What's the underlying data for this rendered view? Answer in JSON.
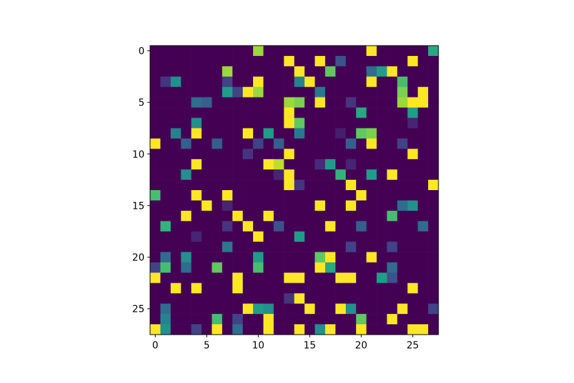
{
  "chart_data": {
    "type": "heatmap",
    "colormap": "viridis",
    "xlim": [
      -0.5,
      27.5
    ],
    "ylim": [
      27.5,
      -0.5
    ],
    "xticks": [
      0,
      5,
      10,
      15,
      20,
      25
    ],
    "yticks": [
      0,
      5,
      10,
      15,
      20,
      25
    ],
    "z": [
      [
        0,
        0,
        0,
        0,
        0,
        0,
        0,
        0,
        0,
        0,
        0.85,
        0,
        0,
        0,
        0,
        0,
        0,
        0,
        0,
        0,
        0,
        1,
        0,
        0,
        0,
        0,
        0,
        0.6
      ],
      [
        0,
        0,
        0,
        0,
        0,
        0,
        0,
        0,
        0,
        0,
        0,
        0,
        0,
        1,
        0,
        0,
        1,
        0,
        0.25,
        0,
        0,
        0,
        0,
        0,
        0,
        1,
        0,
        0
      ],
      [
        0,
        0,
        0,
        0,
        0,
        0,
        0,
        0.85,
        0,
        0,
        0,
        0,
        0,
        0,
        1,
        0,
        0,
        0.75,
        0,
        0,
        0,
        0.35,
        0.55,
        1,
        0,
        0,
        0,
        0
      ],
      [
        0,
        0.15,
        0.5,
        0,
        0,
        0,
        0,
        0.2,
        0,
        0,
        1,
        0,
        0,
        0,
        0.45,
        1,
        0,
        0,
        0,
        0,
        0,
        1,
        0,
        0,
        0.7,
        0,
        0,
        0
      ],
      [
        0,
        0,
        0,
        0,
        0,
        0,
        0,
        0.55,
        0.2,
        1,
        0.85,
        0,
        0,
        0,
        0,
        0,
        0.4,
        0,
        0,
        0,
        0,
        0,
        0,
        0,
        0.8,
        0,
        1,
        0
      ],
      [
        0,
        0,
        0,
        0,
        0.35,
        0.3,
        0,
        0,
        0,
        0,
        0,
        0,
        0,
        0.85,
        0.8,
        0,
        1,
        0,
        0,
        0.15,
        0,
        0,
        0,
        0,
        0.85,
        1,
        1,
        0
      ],
      [
        0,
        0,
        0,
        0,
        0,
        0,
        0,
        0,
        0,
        0,
        0,
        0,
        0,
        1,
        0,
        0,
        0,
        0,
        0,
        0,
        0.6,
        0,
        0,
        0,
        0,
        0.55,
        0,
        0
      ],
      [
        0,
        0,
        0,
        0,
        0.5,
        0,
        0,
        0,
        0,
        0,
        0,
        0,
        0,
        1,
        0.75,
        0,
        0,
        0,
        0,
        0,
        0,
        0,
        0,
        0,
        0,
        0.1,
        0,
        0
      ],
      [
        0,
        0,
        0.45,
        0,
        1,
        0,
        0,
        0,
        0,
        1,
        0,
        0.55,
        0,
        0,
        0.4,
        0,
        0,
        0,
        0.08,
        0,
        0.75,
        0.8,
        0,
        0,
        0,
        0,
        0,
        0
      ],
      [
        1,
        0,
        0,
        0.3,
        0,
        0,
        0.3,
        0,
        0,
        0,
        0.2,
        0,
        0.3,
        0,
        0,
        0,
        0,
        0,
        0,
        0.3,
        0,
        1,
        0,
        0,
        0.2,
        0,
        0,
        0
      ],
      [
        0,
        0,
        0,
        0,
        0,
        0,
        0,
        0,
        0,
        0.15,
        0,
        0,
        0,
        1,
        0,
        0,
        0,
        0,
        0,
        0,
        0,
        0,
        0,
        0,
        0,
        1,
        0,
        0
      ],
      [
        0,
        0,
        0,
        0,
        1,
        0,
        0,
        0,
        0,
        0,
        0,
        1,
        0.9,
        0,
        0,
        0,
        0.12,
        0.55,
        0,
        0.1,
        0,
        0,
        0,
        0,
        0,
        0,
        0,
        0
      ],
      [
        0,
        0,
        0,
        0.5,
        0,
        0,
        0,
        0,
        0,
        0,
        0,
        0,
        0.1,
        1,
        0,
        0,
        0,
        0,
        0.65,
        0,
        0,
        0.55,
        0,
        1,
        0,
        0,
        0,
        0
      ],
      [
        0,
        0,
        0,
        0,
        0,
        0,
        0,
        0,
        0,
        0,
        0,
        0,
        0,
        1,
        0.15,
        0,
        0,
        0,
        0,
        1,
        0,
        0,
        0,
        0,
        0,
        0,
        0,
        1
      ],
      [
        0.7,
        0,
        0,
        0,
        1,
        0,
        0,
        1,
        0,
        0,
        0,
        0,
        0,
        0,
        0,
        0,
        0,
        0,
        0,
        0,
        1,
        0,
        0,
        0,
        0,
        0,
        0,
        0
      ],
      [
        0,
        0,
        0,
        0,
        0,
        1,
        0,
        0.1,
        0,
        0,
        0,
        0,
        0,
        0,
        0,
        0,
        1,
        0,
        0,
        1,
        0,
        0,
        0,
        0,
        0.35,
        0.5,
        0,
        0
      ],
      [
        0,
        0,
        0,
        1,
        0,
        0,
        0,
        0,
        1,
        0,
        0,
        1,
        0,
        0,
        0,
        0,
        0,
        0,
        0,
        0,
        0,
        0,
        0,
        0.7,
        0,
        0,
        0,
        0
      ],
      [
        0,
        0.65,
        0,
        0,
        0,
        0,
        0,
        0.15,
        0,
        1,
        0,
        0,
        0.25,
        0,
        0,
        0,
        0,
        1,
        0,
        0,
        0.3,
        0,
        0,
        0,
        0,
        0,
        0.35,
        0
      ],
      [
        0,
        0,
        0,
        0,
        0.1,
        0,
        0,
        0,
        0,
        0,
        1,
        0,
        0,
        0,
        0.55,
        0,
        0,
        0,
        0,
        0,
        0,
        0,
        0,
        0,
        0,
        0,
        0,
        0
      ],
      [
        0,
        0,
        0,
        0,
        0,
        0,
        0,
        0.4,
        0,
        0,
        0,
        0,
        0,
        0,
        0,
        0,
        0,
        0,
        0,
        0.2,
        0,
        0,
        0,
        0.2,
        0,
        0,
        0,
        0
      ],
      [
        0,
        0.35,
        0,
        0.5,
        0,
        0,
        0,
        0,
        0,
        0,
        0.55,
        0,
        0,
        0,
        0,
        0,
        0.75,
        1,
        0,
        0,
        0,
        1,
        0,
        0,
        0,
        0,
        0,
        0
      ],
      [
        0.2,
        0.7,
        0,
        0.35,
        0,
        0,
        0.75,
        0,
        0,
        0,
        0.7,
        0,
        0,
        0,
        0,
        0,
        1,
        0.6,
        0,
        0,
        0,
        0,
        0,
        0.35,
        0,
        0,
        0,
        0
      ],
      [
        1,
        0,
        0,
        0,
        0,
        0,
        0,
        0,
        1,
        0,
        0,
        0,
        0,
        1,
        1,
        0,
        0,
        0,
        1,
        1,
        0,
        0,
        0.55,
        0.25,
        0,
        0,
        0,
        0
      ],
      [
        0,
        0,
        1,
        0,
        1,
        0,
        0,
        0,
        1,
        0,
        0,
        0,
        0,
        0,
        0,
        0,
        0,
        0,
        0,
        0,
        0,
        0,
        0,
        0,
        0,
        1,
        0,
        0
      ],
      [
        0,
        0,
        0,
        0,
        0,
        0,
        0,
        0,
        0,
        0,
        0,
        0,
        0,
        0.15,
        1,
        0,
        0,
        0,
        0,
        0,
        0,
        0,
        0,
        0,
        0,
        0,
        0,
        0
      ],
      [
        0,
        0.35,
        0,
        0,
        0,
        0,
        0,
        0,
        0,
        1,
        0.55,
        0.5,
        0,
        0,
        0,
        1,
        0,
        0,
        1,
        0.5,
        0,
        0,
        0,
        0,
        1,
        0,
        0,
        0.2
      ],
      [
        0,
        0.45,
        0,
        0,
        0,
        0,
        0.7,
        0,
        0.2,
        0,
        0,
        1,
        0,
        0,
        0,
        0,
        0,
        0,
        0,
        0,
        0.75,
        0,
        0,
        1,
        0,
        0,
        0,
        0
      ],
      [
        1,
        0.5,
        0,
        0,
        0.2,
        0,
        1,
        0,
        0.35,
        0,
        0,
        1,
        0,
        0,
        1,
        0,
        0.5,
        1,
        0,
        0,
        1,
        0,
        0,
        0,
        0,
        1,
        1,
        0
      ]
    ]
  }
}
